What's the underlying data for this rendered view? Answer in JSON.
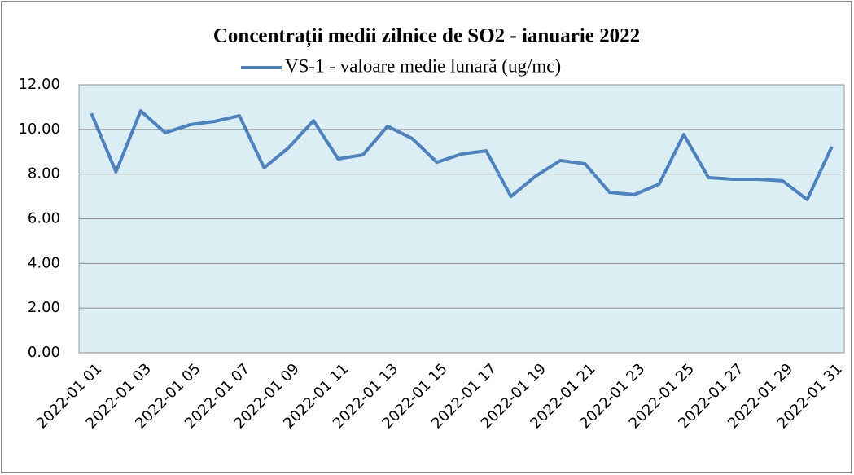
{
  "chart_data": {
    "type": "line",
    "title": "Concentrații  medii zilnice de SO2 - ianuarie 2022",
    "categories": [
      "2022-01 01",
      null,
      "2022-01 03",
      null,
      "2022-01 05",
      null,
      "2022-01 07",
      null,
      "2022-01 09",
      null,
      "2022-01 11",
      null,
      "2022-01 13",
      null,
      "2022-01 15",
      null,
      "2022-01 17",
      null,
      "2022-01 19",
      null,
      "2022-01 21",
      null,
      "2022-01 23",
      null,
      "2022-01 25",
      null,
      "2022-01 27",
      null,
      "2022-01 29",
      null,
      "2022-01 31"
    ],
    "series": [
      {
        "name": "VS-1 - valoare medie lunară (ug/mc)",
        "color": "#4f81bd",
        "values": [
          10.72,
          8.1,
          10.83,
          9.85,
          10.21,
          10.36,
          10.61,
          8.28,
          9.19,
          10.39,
          8.68,
          8.86,
          10.14,
          9.59,
          8.53,
          8.9,
          9.04,
          7.0,
          7.91,
          8.61,
          8.46,
          7.18,
          7.08,
          7.55,
          9.77,
          7.84,
          7.77,
          7.77,
          7.7,
          6.86,
          9.23
        ]
      }
    ],
    "ylim": [
      0,
      12
    ],
    "yticks": [
      {
        "value": 0,
        "label": "0.00"
      },
      {
        "value": 2,
        "label": "2.00"
      },
      {
        "value": 4,
        "label": "4.00"
      },
      {
        "value": 6,
        "label": "6.00"
      },
      {
        "value": 8,
        "label": "8.00"
      },
      {
        "value": 10,
        "label": "10.00"
      },
      {
        "value": 12,
        "label": "12.00"
      }
    ],
    "grid": true,
    "legend": "top"
  }
}
